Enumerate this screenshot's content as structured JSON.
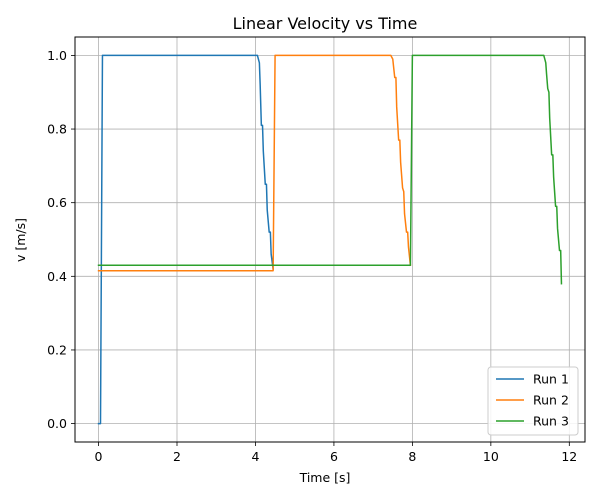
{
  "chart_data": {
    "type": "line",
    "title": "Linear Velocity vs Time",
    "xlabel": "Time [s]",
    "ylabel": "v [m/s]",
    "xlim": [
      -0.6,
      12.4
    ],
    "ylim": [
      -0.05,
      1.05
    ],
    "xticks": [
      0,
      2,
      4,
      6,
      8,
      10,
      12
    ],
    "yticks": [
      0.0,
      0.2,
      0.4,
      0.6,
      0.8,
      1.0
    ],
    "xtick_labels": [
      "0",
      "2",
      "4",
      "6",
      "8",
      "10",
      "12"
    ],
    "ytick_labels": [
      "0.0",
      "0.2",
      "0.4",
      "0.6",
      "0.8",
      "1.0"
    ],
    "grid": true,
    "legend_position": "bottom-right",
    "series": [
      {
        "name": "Run 1",
        "color": "#1f77b4",
        "x": [
          0.0,
          0.05,
          0.1,
          0.15,
          4.05,
          4.1,
          4.12,
          4.15,
          4.18,
          4.2,
          4.25,
          4.28,
          4.3,
          4.35,
          4.38,
          4.4,
          4.45
        ],
        "y": [
          0.0,
          0.0,
          1.0,
          1.0,
          1.0,
          0.98,
          0.92,
          0.81,
          0.81,
          0.74,
          0.65,
          0.65,
          0.58,
          0.52,
          0.52,
          0.46,
          0.42
        ]
      },
      {
        "name": "Run 2",
        "color": "#ff7f0e",
        "x": [
          0.0,
          4.45,
          4.5,
          4.55,
          7.45,
          7.5,
          7.52,
          7.55,
          7.58,
          7.6,
          7.65,
          7.68,
          7.7,
          7.75,
          7.78,
          7.8,
          7.85,
          7.88,
          7.9,
          7.95
        ],
        "y": [
          0.415,
          0.415,
          1.0,
          1.0,
          1.0,
          0.99,
          0.97,
          0.94,
          0.94,
          0.86,
          0.77,
          0.77,
          0.71,
          0.64,
          0.63,
          0.57,
          0.52,
          0.52,
          0.48,
          0.43
        ]
      },
      {
        "name": "Run 3",
        "color": "#2ca02c",
        "x": [
          0.0,
          7.95,
          8.0,
          8.05,
          11.35,
          11.4,
          11.42,
          11.45,
          11.48,
          11.5,
          11.55,
          11.58,
          11.6,
          11.65,
          11.68,
          11.7,
          11.75,
          11.78,
          11.8
        ],
        "y": [
          0.43,
          0.43,
          1.0,
          1.0,
          1.0,
          0.98,
          0.95,
          0.91,
          0.9,
          0.83,
          0.73,
          0.73,
          0.67,
          0.59,
          0.59,
          0.53,
          0.47,
          0.47,
          0.38
        ]
      }
    ]
  }
}
